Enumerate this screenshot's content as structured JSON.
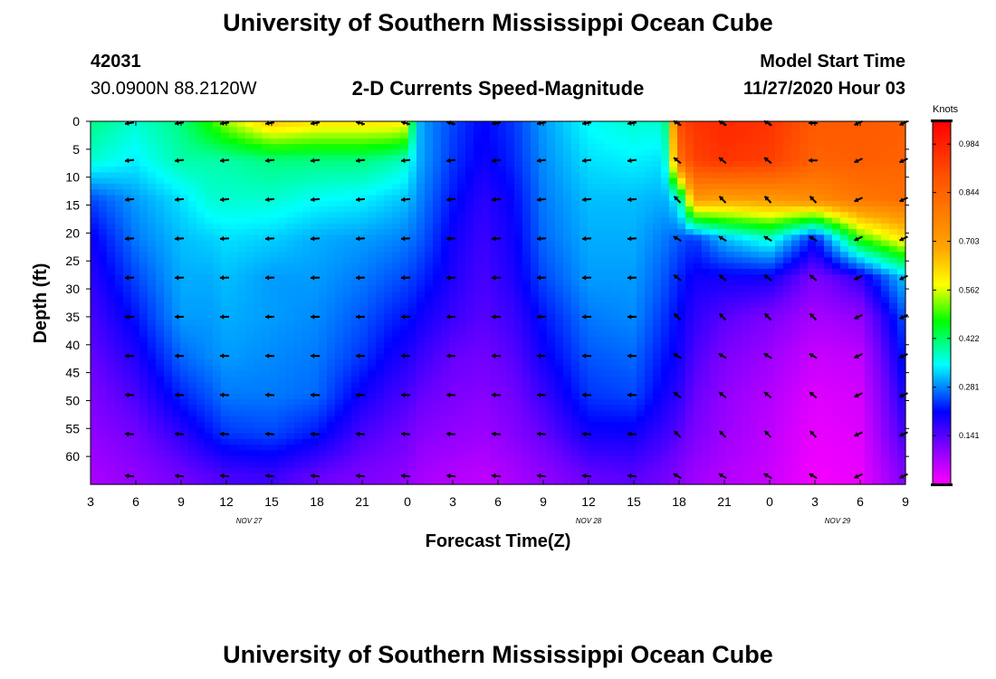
{
  "header": {
    "title": "University of Southern Mississippi Ocean Cube",
    "station_id": "42031",
    "coords": "30.0900N 88.2120W",
    "chart_title": "2-D Currents Speed-Magnitude",
    "model_start_label": "Model Start Time",
    "model_start_value": "11/27/2020 Hour 03"
  },
  "footer": {
    "title": "University of Southern Mississippi Ocean Cube"
  },
  "chart_data": {
    "type": "heatmap",
    "title": "2-D Currents Speed-Magnitude",
    "xlabel": "Forecast Time(Z)",
    "ylabel": "Depth (ft)",
    "colorbar_label": "Knots",
    "x_hours_range": [
      0,
      54
    ],
    "depth_range": [
      0,
      65
    ],
    "x_ticks": [
      "3",
      "6",
      "9",
      "12",
      "15",
      "18",
      "21",
      "0",
      "3",
      "6",
      "9",
      "12",
      "15",
      "18",
      "21",
      "0",
      "3",
      "6",
      "9"
    ],
    "y_ticks": [
      "0",
      "5",
      "10",
      "15",
      "20",
      "25",
      "30",
      "35",
      "40",
      "45",
      "50",
      "55",
      "60"
    ],
    "date_labels": [
      {
        "text": "NOV 27",
        "hour": 10.5
      },
      {
        "text": "NOV 28",
        "hour": 33
      },
      {
        "text": "NOV 29",
        "hour": 49.5
      }
    ],
    "colorbar_ticks": [
      "0.984",
      "0.844",
      "0.703",
      "0.562",
      "0.422",
      "0.281",
      "0.141"
    ],
    "colorbar_range": [
      0,
      1.05
    ],
    "vector_columns_hours": [
      2.7,
      6,
      9,
      12,
      15,
      18,
      21,
      24,
      27,
      30,
      33,
      36,
      39,
      42,
      45,
      48,
      51,
      54
    ],
    "vector_depths_ft": [
      0,
      7,
      14,
      21,
      28,
      35,
      42,
      49,
      56,
      63.5
    ],
    "profiles": [
      {
        "hour": 0,
        "speeds": [
          0.42,
          0.38,
          0.25,
          0.2,
          0.18,
          0.16,
          0.14,
          0.12,
          0.1,
          0.08
        ]
      },
      {
        "hour": 3,
        "speeds": [
          0.38,
          0.35,
          0.3,
          0.28,
          0.25,
          0.22,
          0.19,
          0.16,
          0.13,
          0.1
        ]
      },
      {
        "hour": 6,
        "speeds": [
          0.42,
          0.4,
          0.34,
          0.32,
          0.31,
          0.3,
          0.27,
          0.23,
          0.18,
          0.13
        ]
      },
      {
        "hour": 8,
        "speeds": [
          0.5,
          0.4,
          0.38,
          0.33,
          0.31,
          0.3,
          0.29,
          0.26,
          0.22,
          0.15
        ]
      },
      {
        "hour": 9,
        "speeds": [
          0.55,
          0.4,
          0.38,
          0.34,
          0.32,
          0.31,
          0.3,
          0.28,
          0.24,
          0.16
        ]
      },
      {
        "hour": 12,
        "speeds": [
          0.65,
          0.42,
          0.38,
          0.33,
          0.3,
          0.3,
          0.29,
          0.28,
          0.25,
          0.17
        ]
      },
      {
        "hour": 15,
        "speeds": [
          0.62,
          0.42,
          0.36,
          0.31,
          0.3,
          0.29,
          0.28,
          0.27,
          0.22,
          0.14
        ]
      },
      {
        "hour": 18,
        "speeds": [
          0.62,
          0.42,
          0.35,
          0.3,
          0.28,
          0.26,
          0.24,
          0.2,
          0.16,
          0.12
        ]
      },
      {
        "hour": 20,
        "speeds": [
          0.62,
          0.4,
          0.33,
          0.29,
          0.26,
          0.23,
          0.2,
          0.17,
          0.14,
          0.11
        ]
      },
      {
        "hour": 21,
        "speeds": [
          0.6,
          0.38,
          0.32,
          0.28,
          0.25,
          0.22,
          0.19,
          0.16,
          0.13,
          0.1
        ]
      },
      {
        "hour": 21.5,
        "speeds": [
          0.35,
          0.33,
          0.3,
          0.27,
          0.24,
          0.21,
          0.18,
          0.15,
          0.12,
          0.09
        ]
      },
      {
        "hour": 22,
        "speeds": [
          0.3,
          0.3,
          0.28,
          0.26,
          0.23,
          0.2,
          0.17,
          0.14,
          0.11,
          0.08
        ]
      },
      {
        "hour": 24,
        "speeds": [
          0.25,
          0.24,
          0.22,
          0.2,
          0.19,
          0.17,
          0.14,
          0.12,
          0.1,
          0.07
        ]
      },
      {
        "hour": 26,
        "speeds": [
          0.21,
          0.2,
          0.18,
          0.17,
          0.16,
          0.15,
          0.13,
          0.11,
          0.09,
          0.06
        ]
      },
      {
        "hour": 28,
        "speeds": [
          0.24,
          0.23,
          0.21,
          0.2,
          0.19,
          0.17,
          0.15,
          0.13,
          0.11,
          0.08
        ]
      },
      {
        "hour": 30,
        "speeds": [
          0.3,
          0.29,
          0.28,
          0.27,
          0.25,
          0.22,
          0.2,
          0.17,
          0.14,
          0.1
        ]
      },
      {
        "hour": 33,
        "speeds": [
          0.36,
          0.34,
          0.32,
          0.31,
          0.3,
          0.28,
          0.26,
          0.24,
          0.2,
          0.14
        ]
      },
      {
        "hour": 36,
        "speeds": [
          0.38,
          0.35,
          0.32,
          0.31,
          0.3,
          0.29,
          0.27,
          0.25,
          0.2,
          0.15
        ]
      },
      {
        "hour": 38,
        "speeds": [
          0.38,
          0.34,
          0.31,
          0.28,
          0.26,
          0.24,
          0.22,
          0.2,
          0.17,
          0.13
        ]
      },
      {
        "hour": 39,
        "speeds": [
          0.9,
          0.82,
          0.36,
          0.26,
          0.23,
          0.21,
          0.2,
          0.18,
          0.15,
          0.11
        ]
      },
      {
        "hour": 40,
        "speeds": [
          0.95,
          0.92,
          0.72,
          0.24,
          0.2,
          0.18,
          0.16,
          0.14,
          0.12,
          0.09
        ]
      },
      {
        "hour": 42,
        "speeds": [
          0.97,
          0.95,
          0.7,
          0.32,
          0.2,
          0.15,
          0.12,
          0.1,
          0.09,
          0.07
        ]
      },
      {
        "hour": 45,
        "speeds": [
          0.95,
          0.93,
          0.72,
          0.38,
          0.2,
          0.12,
          0.09,
          0.07,
          0.06,
          0.05
        ]
      },
      {
        "hour": 48,
        "speeds": [
          0.87,
          0.85,
          0.75,
          0.22,
          0.12,
          0.08,
          0.05,
          0.03,
          0.02,
          0.01
        ]
      },
      {
        "hour": 51,
        "speeds": [
          0.87,
          0.86,
          0.8,
          0.5,
          0.18,
          0.1,
          0.06,
          0.04,
          0.03,
          0.02
        ]
      },
      {
        "hour": 54,
        "speeds": [
          0.86,
          0.85,
          0.82,
          0.62,
          0.33,
          0.26,
          0.23,
          0.2,
          0.17,
          0.12
        ]
      }
    ]
  }
}
